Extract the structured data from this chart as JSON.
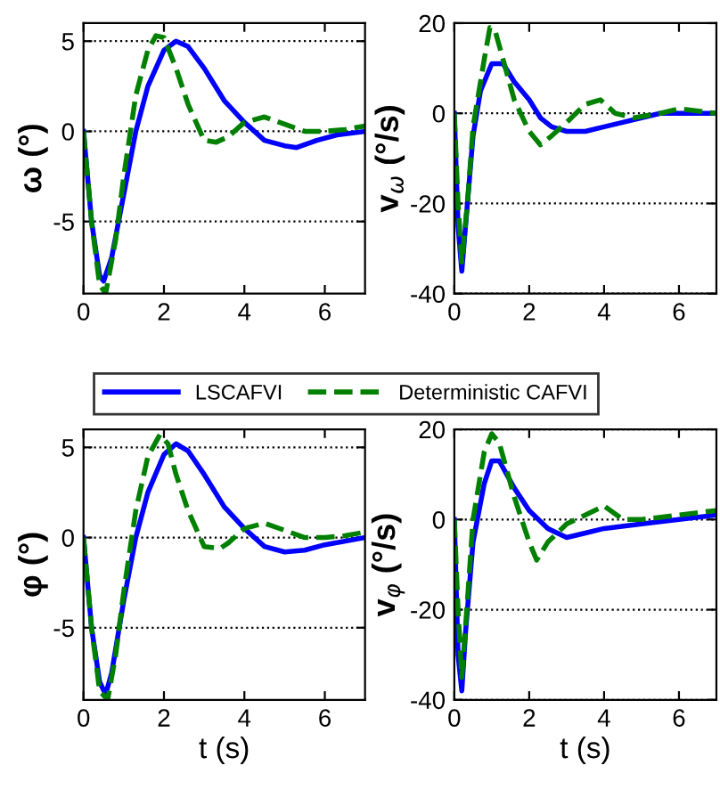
{
  "chart_data": [
    {
      "type": "line",
      "ylabel": "ω (°)",
      "xlim": [
        0,
        7
      ],
      "xticks": [
        0,
        2,
        4,
        6
      ],
      "ylim": [
        -9,
        6
      ],
      "yticks": [
        -5,
        0,
        5
      ],
      "grid": "y",
      "legend": "bottom",
      "series": [
        {
          "name": "LSCAFVI",
          "color": "#0000ff",
          "line_style": "solid",
          "x": [
            0,
            0.2,
            0.4,
            0.5,
            0.7,
            1.0,
            1.3,
            1.6,
            2.0,
            2.3,
            2.6,
            3.0,
            3.5,
            4.0,
            4.5,
            5.0,
            5.3,
            5.8,
            6.3,
            7
          ],
          "values": [
            0,
            -5,
            -8,
            -8.3,
            -7,
            -3.5,
            0,
            2.5,
            4.5,
            5,
            4.7,
            3.5,
            1.7,
            0.5,
            -0.5,
            -0.8,
            -0.9,
            -0.5,
            -0.2,
            0
          ]
        },
        {
          "name": "Deterministic CAFVI",
          "color": "#008000",
          "line_style": "dashed",
          "x": [
            0,
            0.2,
            0.4,
            0.55,
            0.8,
            1.0,
            1.3,
            1.6,
            1.8,
            2.0,
            2.3,
            2.6,
            3.0,
            3.3,
            3.6,
            4.0,
            4.5,
            5.0,
            5.5,
            6.0,
            6.5,
            7
          ],
          "values": [
            0,
            -5,
            -8.5,
            -9,
            -6,
            -2.5,
            2,
            4.5,
            5.3,
            5.2,
            3.5,
            1.5,
            -0.5,
            -0.6,
            -0.3,
            0.5,
            0.8,
            0.4,
            0,
            0,
            0.1,
            0.3
          ]
        }
      ]
    },
    {
      "type": "line",
      "ylabel": "v$_{ω}$ (°/s)",
      "xlim": [
        0,
        7
      ],
      "xticks": [
        0,
        2,
        4,
        6
      ],
      "ylim": [
        -40,
        20
      ],
      "yticks": [
        -40,
        -20,
        0,
        20
      ],
      "grid": "y",
      "series": [
        {
          "color": "#0000ff",
          "line_style": "solid",
          "x": [
            0,
            0.1,
            0.2,
            0.3,
            0.5,
            0.7,
            1.0,
            1.3,
            1.6,
            2.0,
            2.3,
            2.6,
            3.0,
            3.5,
            4.0,
            4.5,
            5.0,
            5.5,
            6.0,
            7
          ],
          "values": [
            0,
            -25,
            -35,
            -25,
            -5,
            5,
            11,
            11,
            7,
            3,
            -1,
            -3,
            -4,
            -4,
            -3,
            -2,
            -1,
            0,
            0,
            0
          ]
        },
        {
          "color": "#008000",
          "line_style": "dashed",
          "x": [
            0,
            0.1,
            0.2,
            0.35,
            0.5,
            0.8,
            0.95,
            1.1,
            1.3,
            1.6,
            2.0,
            2.3,
            2.6,
            3.0,
            3.5,
            3.9,
            4.3,
            4.8,
            5.5,
            6.0,
            7
          ],
          "values": [
            0,
            -20,
            -33,
            -20,
            -3,
            12,
            19,
            18,
            12,
            3,
            -4,
            -7,
            -5,
            -2,
            2,
            3,
            0,
            -1,
            0,
            1,
            0
          ]
        }
      ]
    },
    {
      "type": "line",
      "xlabel": "t (s)",
      "ylabel": "φ (°)",
      "xlim": [
        0,
        7
      ],
      "xticks": [
        0,
        2,
        4,
        6
      ],
      "ylim": [
        -9,
        6
      ],
      "yticks": [
        -5,
        0,
        5
      ],
      "grid": "y",
      "series": [
        {
          "color": "#0000ff",
          "line_style": "solid",
          "x": [
            0,
            0.2,
            0.4,
            0.55,
            0.7,
            1.0,
            1.3,
            1.6,
            2.0,
            2.3,
            2.6,
            3.0,
            3.5,
            4.0,
            4.5,
            5.0,
            5.5,
            6.0,
            7
          ],
          "values": [
            0,
            -5,
            -8,
            -8.7,
            -7.5,
            -3.5,
            0,
            2.5,
            4.6,
            5.2,
            4.8,
            3.5,
            1.7,
            0.5,
            -0.5,
            -0.8,
            -0.7,
            -0.4,
            0
          ]
        },
        {
          "color": "#008000",
          "line_style": "dashed",
          "x": [
            0,
            0.2,
            0.4,
            0.6,
            0.8,
            1.0,
            1.3,
            1.6,
            1.9,
            2.1,
            2.3,
            2.6,
            3.0,
            3.4,
            3.6,
            4.0,
            4.5,
            5.0,
            5.5,
            6.0,
            6.5,
            7
          ],
          "values": [
            0,
            -5,
            -8.5,
            -9,
            -6.5,
            -3,
            1.5,
            4.5,
            5.7,
            5.2,
            3.5,
            1.5,
            -0.5,
            -0.6,
            -0.3,
            0.5,
            0.8,
            0.4,
            0,
            0,
            0.1,
            0.3
          ]
        }
      ]
    },
    {
      "type": "line",
      "xlabel": "t (s)",
      "ylabel": "v$_{φ}$ (°/s)",
      "xlim": [
        0,
        7
      ],
      "xticks": [
        0,
        2,
        4,
        6
      ],
      "ylim": [
        -40,
        20
      ],
      "yticks": [
        -40,
        -20,
        0,
        20
      ],
      "grid": "y",
      "series": [
        {
          "color": "#0000ff",
          "line_style": "solid",
          "x": [
            0,
            0.1,
            0.2,
            0.3,
            0.5,
            0.8,
            1.0,
            1.2,
            1.6,
            2.0,
            2.5,
            3.0,
            3.5,
            4.0,
            5.0,
            6.0,
            7
          ],
          "values": [
            0,
            -30,
            -38,
            -25,
            -5,
            8,
            13,
            13,
            7,
            2,
            -2,
            -4,
            -3,
            -2,
            -1,
            0,
            1
          ]
        },
        {
          "color": "#008000",
          "line_style": "dashed",
          "x": [
            0,
            0.1,
            0.2,
            0.35,
            0.5,
            0.8,
            1.0,
            1.2,
            1.6,
            2.0,
            2.2,
            2.5,
            3.0,
            3.5,
            4.0,
            4.5,
            5.0,
            6.0,
            7
          ],
          "values": [
            0,
            -20,
            -35,
            -18,
            0,
            15,
            19,
            17,
            5,
            -5,
            -9,
            -5,
            -1,
            1,
            3,
            0,
            0,
            1,
            2
          ]
        }
      ]
    }
  ]
}
